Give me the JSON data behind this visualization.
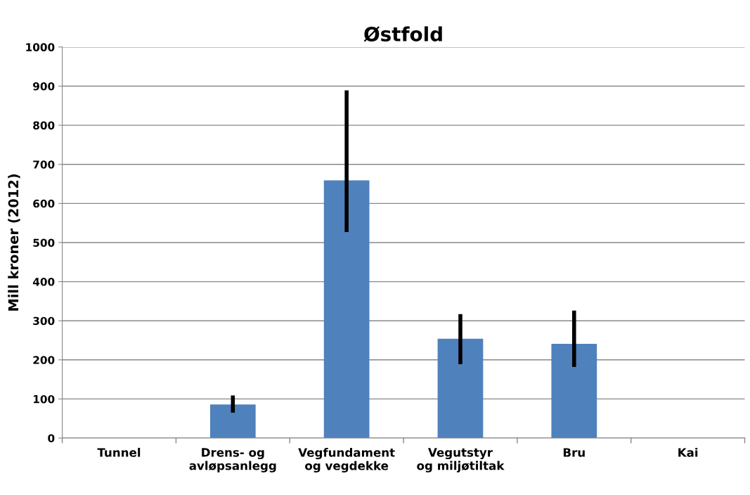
{
  "chart_data": {
    "type": "bar",
    "title": "Østfold",
    "ylabel": "Mill kroner (2012)",
    "categories": [
      "Tunnel",
      "Drens- og\navløpsanlegg",
      "Vegfundament\nog vegdekke",
      "Vegutstyr\nog miljøtiltak",
      "Bru",
      "Kai"
    ],
    "values": [
      0,
      86,
      659,
      254,
      241,
      0
    ],
    "errors": [
      null,
      [
        65,
        109
      ],
      [
        527,
        889
      ],
      [
        189,
        317
      ],
      [
        182,
        326
      ],
      null
    ],
    "color": "#4f81bd",
    "ylim": [
      0,
      1000
    ],
    "yticks": [
      0,
      100,
      200,
      300,
      400,
      500,
      600,
      700,
      800,
      900,
      1000
    ],
    "grid": "y"
  }
}
